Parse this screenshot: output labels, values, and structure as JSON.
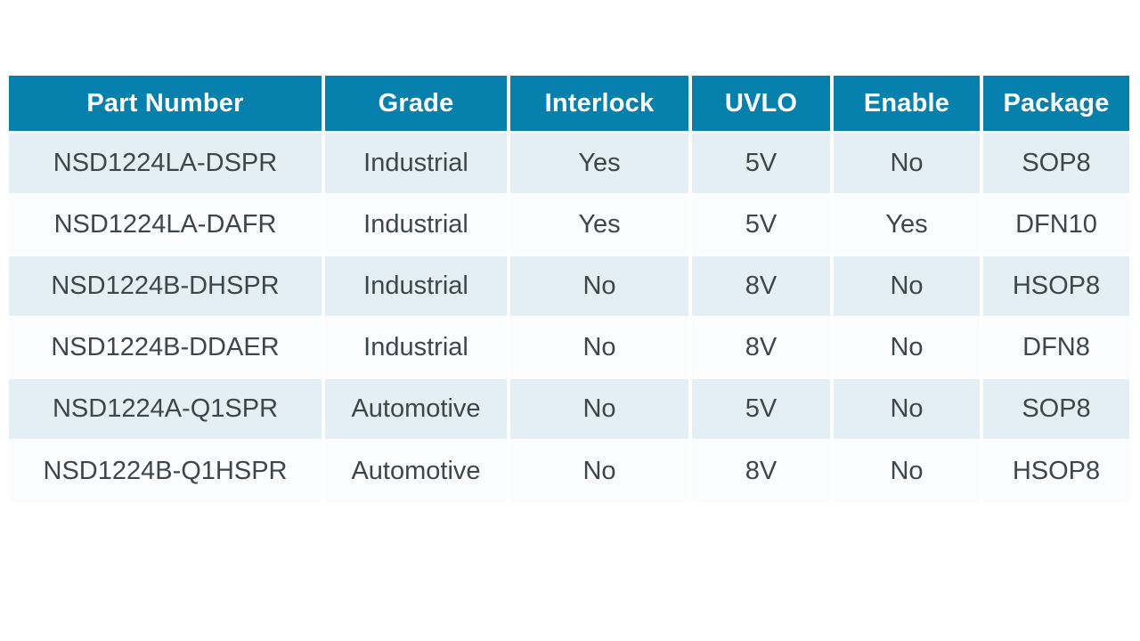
{
  "colors": {
    "header_bg": "#0681AE",
    "header_text": "#FFFFFF",
    "row_alt_bg": "#E3EEF5",
    "row_bg": "#FAFCFD",
    "cell_text": "#3F464B",
    "divider": "#FFFFFF"
  },
  "table": {
    "columns": [
      {
        "key": "part_number",
        "label": "Part Number"
      },
      {
        "key": "grade",
        "label": "Grade"
      },
      {
        "key": "interlock",
        "label": "Interlock"
      },
      {
        "key": "uvlo",
        "label": "UVLO"
      },
      {
        "key": "enable",
        "label": "Enable"
      },
      {
        "key": "package",
        "label": "Package"
      }
    ],
    "rows": [
      [
        "NSD1224LA-DSPR",
        "Industrial",
        "Yes",
        "5V",
        "No",
        "SOP8"
      ],
      [
        "NSD1224LA-DAFR",
        "Industrial",
        "Yes",
        "5V",
        "Yes",
        "DFN10"
      ],
      [
        "NSD1224B-DHSPR",
        "Industrial",
        "No",
        "8V",
        "No",
        "HSOP8"
      ],
      [
        "NSD1224B-DDAER",
        "Industrial",
        "No",
        "8V",
        "No",
        "DFN8"
      ],
      [
        "NSD1224A-Q1SPR",
        "Automotive",
        "No",
        "5V",
        "No",
        "SOP8"
      ],
      [
        "NSD1224B-Q1HSPR",
        "Automotive",
        "No",
        "8V",
        "No",
        "HSOP8"
      ]
    ]
  }
}
